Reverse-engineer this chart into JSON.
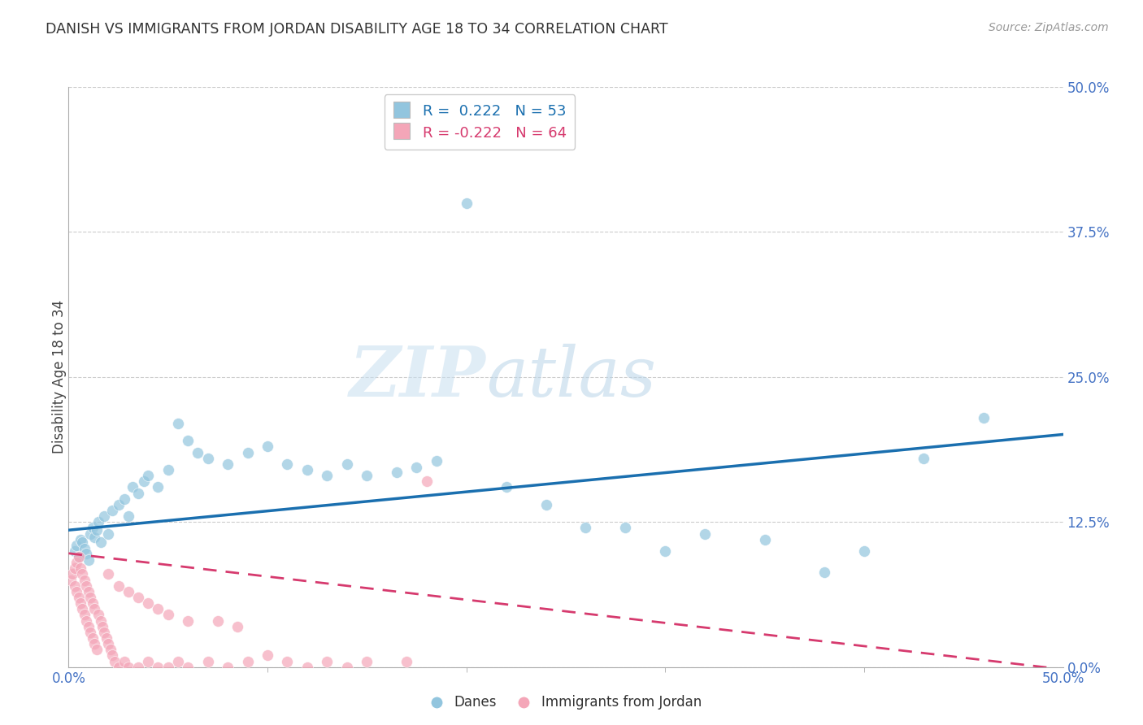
{
  "title": "DANISH VS IMMIGRANTS FROM JORDAN DISABILITY AGE 18 TO 34 CORRELATION CHART",
  "source": "Source: ZipAtlas.com",
  "ylabel": "Disability Age 18 to 34",
  "xmin": 0.0,
  "xmax": 0.5,
  "ymin": 0.0,
  "ymax": 0.5,
  "xtick_positions": [
    0.0,
    0.5
  ],
  "xticklabels": [
    "0.0%",
    "50.0%"
  ],
  "yticks": [
    0.0,
    0.125,
    0.25,
    0.375,
    0.5
  ],
  "yticklabels": [
    "0.0%",
    "12.5%",
    "25.0%",
    "37.5%",
    "50.0%"
  ],
  "blue_color": "#92c5de",
  "pink_color": "#f4a6b8",
  "blue_line_color": "#1a6faf",
  "pink_line_color": "#d63a6e",
  "legend_label1": "R =  0.222   N = 53",
  "legend_label2": "R = -0.222   N = 64",
  "legend_label_blue": "Danes",
  "legend_label_pink": "Immigrants from Jordan",
  "watermark_zip": "ZIP",
  "watermark_atlas": "atlas",
  "blue_intercept": 0.118,
  "blue_slope": 0.165,
  "pink_intercept": 0.098,
  "pink_slope": -0.2,
  "danes_x": [
    0.003,
    0.004,
    0.005,
    0.006,
    0.007,
    0.008,
    0.009,
    0.01,
    0.011,
    0.012,
    0.013,
    0.014,
    0.015,
    0.016,
    0.018,
    0.02,
    0.022,
    0.025,
    0.028,
    0.03,
    0.032,
    0.035,
    0.038,
    0.04,
    0.045,
    0.05,
    0.055,
    0.06,
    0.065,
    0.07,
    0.08,
    0.09,
    0.1,
    0.11,
    0.12,
    0.13,
    0.14,
    0.15,
    0.165,
    0.175,
    0.185,
    0.2,
    0.22,
    0.24,
    0.26,
    0.28,
    0.3,
    0.32,
    0.35,
    0.38,
    0.4,
    0.43,
    0.46
  ],
  "danes_y": [
    0.1,
    0.105,
    0.095,
    0.11,
    0.108,
    0.102,
    0.098,
    0.092,
    0.115,
    0.12,
    0.112,
    0.118,
    0.125,
    0.108,
    0.13,
    0.115,
    0.135,
    0.14,
    0.145,
    0.13,
    0.155,
    0.15,
    0.16,
    0.165,
    0.155,
    0.17,
    0.21,
    0.195,
    0.185,
    0.18,
    0.175,
    0.185,
    0.19,
    0.175,
    0.17,
    0.165,
    0.175,
    0.165,
    0.168,
    0.172,
    0.178,
    0.4,
    0.155,
    0.14,
    0.12,
    0.12,
    0.1,
    0.115,
    0.11,
    0.082,
    0.1,
    0.18,
    0.215
  ],
  "jordan_x": [
    0.001,
    0.002,
    0.003,
    0.003,
    0.004,
    0.004,
    0.005,
    0.005,
    0.006,
    0.006,
    0.007,
    0.007,
    0.008,
    0.008,
    0.009,
    0.009,
    0.01,
    0.01,
    0.011,
    0.011,
    0.012,
    0.012,
    0.013,
    0.013,
    0.014,
    0.015,
    0.016,
    0.017,
    0.018,
    0.019,
    0.02,
    0.021,
    0.022,
    0.023,
    0.025,
    0.028,
    0.03,
    0.035,
    0.04,
    0.045,
    0.05,
    0.055,
    0.06,
    0.07,
    0.08,
    0.09,
    0.1,
    0.11,
    0.12,
    0.13,
    0.14,
    0.15,
    0.17,
    0.02,
    0.025,
    0.03,
    0.035,
    0.04,
    0.045,
    0.05,
    0.06,
    0.075,
    0.085,
    0.18
  ],
  "jordan_y": [
    0.075,
    0.08,
    0.07,
    0.085,
    0.065,
    0.09,
    0.06,
    0.095,
    0.055,
    0.085,
    0.05,
    0.08,
    0.045,
    0.075,
    0.04,
    0.07,
    0.035,
    0.065,
    0.03,
    0.06,
    0.025,
    0.055,
    0.02,
    0.05,
    0.015,
    0.045,
    0.04,
    0.035,
    0.03,
    0.025,
    0.02,
    0.015,
    0.01,
    0.005,
    0.0,
    0.005,
    0.0,
    0.0,
    0.005,
    0.0,
    0.0,
    0.005,
    0.0,
    0.005,
    0.0,
    0.005,
    0.01,
    0.005,
    0.0,
    0.005,
    0.0,
    0.005,
    0.005,
    0.08,
    0.07,
    0.065,
    0.06,
    0.055,
    0.05,
    0.045,
    0.04,
    0.04,
    0.035,
    0.16
  ]
}
